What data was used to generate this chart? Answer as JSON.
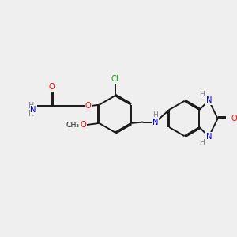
{
  "bg_color": "#efefef",
  "bond_color": "#1a1a1a",
  "atom_colors": {
    "O": "#ff0000",
    "N": "#0000dd",
    "Cl": "#00aa00",
    "H": "#808080",
    "C": "#1a1a1a"
  },
  "lw": 1.4,
  "dbl_sep": 0.055,
  "fs": 7.2
}
